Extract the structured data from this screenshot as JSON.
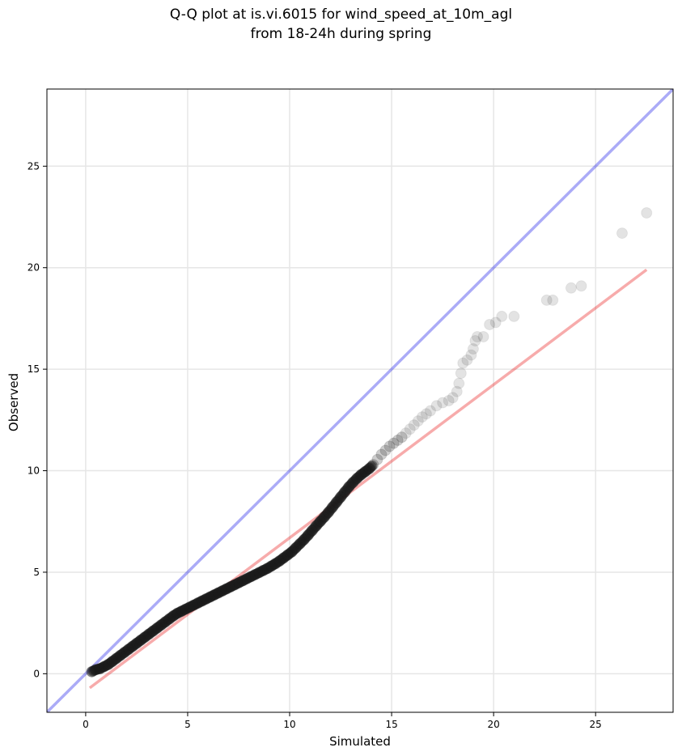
{
  "chart_data": {
    "type": "scatter",
    "title_lines": [
      "Q-Q plot at is.vi.6015 for wind_speed_at_10m_agl",
      "from 18-24h during spring"
    ],
    "xlabel": "Simulated",
    "ylabel": "Observed",
    "xlim": [
      -1.9,
      28.8
    ],
    "ylim": [
      -1.9,
      28.8
    ],
    "xticks": [
      0,
      5,
      10,
      15,
      20,
      25
    ],
    "yticks": [
      0,
      5,
      10,
      15,
      20,
      25
    ],
    "grid": true,
    "identity_line": {
      "color": "#0000e6",
      "from": [
        -1.9,
        -1.9
      ],
      "to": [
        28.8,
        28.8
      ]
    },
    "fit_line": {
      "color": "#e60000",
      "from": [
        0.2,
        -0.7
      ],
      "to": [
        27.5,
        19.9
      ]
    },
    "points_color": "#1a1a1a",
    "points": [
      [
        0.3,
        0.1
      ],
      [
        0.5,
        0.2
      ],
      [
        0.7,
        0.25
      ],
      [
        0.9,
        0.35
      ],
      [
        1.1,
        0.45
      ],
      [
        1.3,
        0.6
      ],
      [
        1.5,
        0.75
      ],
      [
        1.7,
        0.9
      ],
      [
        1.9,
        1.05
      ],
      [
        2.1,
        1.2
      ],
      [
        2.3,
        1.35
      ],
      [
        2.5,
        1.5
      ],
      [
        2.7,
        1.65
      ],
      [
        2.9,
        1.8
      ],
      [
        3.1,
        1.95
      ],
      [
        3.3,
        2.1
      ],
      [
        3.5,
        2.25
      ],
      [
        3.7,
        2.4
      ],
      [
        3.9,
        2.55
      ],
      [
        4.1,
        2.7
      ],
      [
        4.3,
        2.85
      ],
      [
        4.5,
        2.98
      ],
      [
        4.7,
        3.08
      ],
      [
        4.9,
        3.18
      ],
      [
        5.1,
        3.28
      ],
      [
        5.3,
        3.38
      ],
      [
        5.5,
        3.48
      ],
      [
        5.7,
        3.58
      ],
      [
        5.9,
        3.68
      ],
      [
        6.1,
        3.78
      ],
      [
        6.3,
        3.88
      ],
      [
        6.5,
        3.98
      ],
      [
        6.7,
        4.08
      ],
      [
        6.9,
        4.18
      ],
      [
        7.1,
        4.28
      ],
      [
        7.3,
        4.38
      ],
      [
        7.5,
        4.48
      ],
      [
        7.7,
        4.58
      ],
      [
        7.9,
        4.68
      ],
      [
        8.1,
        4.78
      ],
      [
        8.3,
        4.88
      ],
      [
        8.5,
        4.98
      ],
      [
        8.7,
        5.08
      ],
      [
        8.9,
        5.18
      ],
      [
        9.1,
        5.3
      ],
      [
        9.3,
        5.42
      ],
      [
        9.5,
        5.55
      ],
      [
        9.7,
        5.7
      ],
      [
        9.9,
        5.85
      ],
      [
        10.1,
        6.0
      ],
      [
        10.3,
        6.2
      ],
      [
        10.5,
        6.4
      ],
      [
        10.7,
        6.6
      ],
      [
        10.9,
        6.82
      ],
      [
        11.1,
        7.05
      ],
      [
        11.3,
        7.28
      ],
      [
        11.5,
        7.5
      ],
      [
        11.7,
        7.72
      ],
      [
        11.9,
        7.95
      ],
      [
        12.1,
        8.2
      ],
      [
        12.3,
        8.45
      ],
      [
        12.5,
        8.7
      ],
      [
        12.7,
        8.95
      ],
      [
        12.9,
        9.2
      ],
      [
        13.1,
        9.42
      ],
      [
        13.3,
        9.62
      ],
      [
        13.5,
        9.8
      ],
      [
        13.7,
        9.95
      ],
      [
        13.9,
        10.1
      ],
      [
        14.1,
        10.3
      ],
      [
        14.3,
        10.55
      ],
      [
        14.5,
        10.8
      ],
      [
        14.7,
        11.0
      ],
      [
        14.9,
        11.2
      ],
      [
        15.1,
        11.35
      ],
      [
        15.3,
        11.5
      ],
      [
        15.5,
        11.65
      ],
      [
        15.7,
        11.85
      ],
      [
        15.9,
        12.05
      ],
      [
        16.1,
        12.25
      ],
      [
        16.3,
        12.45
      ],
      [
        16.5,
        12.65
      ],
      [
        16.7,
        12.8
      ],
      [
        16.9,
        12.95
      ],
      [
        17.2,
        13.2
      ],
      [
        17.5,
        13.35
      ],
      [
        17.8,
        13.45
      ],
      [
        18.0,
        13.6
      ],
      [
        18.2,
        13.9
      ],
      [
        18.3,
        14.3
      ],
      [
        18.4,
        14.8
      ],
      [
        18.5,
        15.3
      ],
      [
        18.7,
        15.45
      ],
      [
        18.9,
        15.7
      ],
      [
        19.0,
        16.0
      ],
      [
        19.1,
        16.4
      ],
      [
        19.2,
        16.6
      ],
      [
        19.5,
        16.6
      ],
      [
        19.8,
        17.2
      ],
      [
        20.1,
        17.3
      ],
      [
        20.4,
        17.6
      ],
      [
        21.0,
        17.6
      ],
      [
        22.6,
        18.4
      ],
      [
        22.9,
        18.4
      ],
      [
        23.8,
        19.0
      ],
      [
        24.3,
        19.1
      ],
      [
        26.3,
        21.7
      ],
      [
        27.5,
        22.7
      ]
    ]
  }
}
